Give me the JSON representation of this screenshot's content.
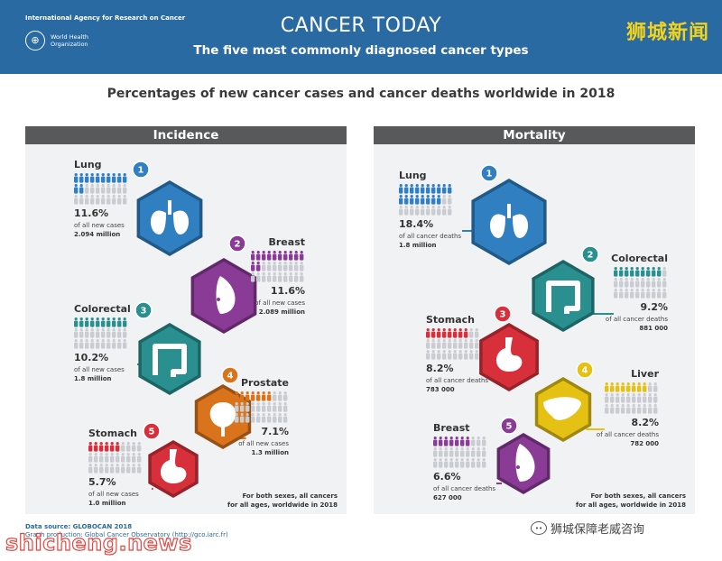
{
  "header": {
    "org_name": "International Agency for Research on Cancer",
    "who_name": "World Health\nOrganization",
    "title": "CANCER TODAY",
    "subtitle": "The five most commonly diagnosed cancer types",
    "watermark": "狮城新闻"
  },
  "main_title": "Percentages of new cancer cases and cancer deaths worldwide in 2018",
  "panels": {
    "incidence": {
      "heading": "Incidence",
      "footnote_1": "For both sexes, all cancers",
      "footnote_2": "for all ages, worldwide in 2018",
      "items": [
        {
          "rank": "1",
          "name": "Lung",
          "pct": "11.6%",
          "sub": "of all new cases",
          "count": "2.094 million",
          "color": "#2f7fc1",
          "icon": "lungs-icon",
          "highlight": 12
        },
        {
          "rank": "2",
          "name": "Breast",
          "pct": "11.6%",
          "sub": "of all new cases",
          "count": "2.089 million",
          "color": "#8a3b96",
          "icon": "breast-icon",
          "highlight": 12
        },
        {
          "rank": "3",
          "name": "Colorectal",
          "pct": "10.2%",
          "sub": "of all new cases",
          "count": "1.8 million",
          "color": "#2a8f8f",
          "icon": "colon-icon",
          "highlight": 10
        },
        {
          "rank": "4",
          "name": "Prostate",
          "pct": "7.1%",
          "sub": "of all new cases",
          "count": "1.3 million",
          "color": "#d9741c",
          "icon": "prostate-icon",
          "highlight": 7
        },
        {
          "rank": "5",
          "name": "Stomach",
          "pct": "5.7%",
          "sub": "of all new cases",
          "count": "1.0 million",
          "color": "#d7303b",
          "icon": "stomach-icon",
          "highlight": 6
        }
      ]
    },
    "mortality": {
      "heading": "Mortality",
      "footnote_1": "For both sexes, all cancers",
      "footnote_2": "for all ages, worldwide in 2018",
      "items": [
        {
          "rank": "1",
          "name": "Lung",
          "pct": "18.4%",
          "sub": "of all cancer deaths",
          "count": "1.8 million",
          "color": "#2f7fc1",
          "icon": "lungs-icon",
          "highlight": 18
        },
        {
          "rank": "2",
          "name": "Colorectal",
          "pct": "9.2%",
          "sub": "of all cancer deaths",
          "count": "881 000",
          "color": "#2a8f8f",
          "icon": "colon-icon",
          "highlight": 9
        },
        {
          "rank": "3",
          "name": "Stomach",
          "pct": "8.2%",
          "sub": "of all cancer deaths",
          "count": "783 000",
          "color": "#d7303b",
          "icon": "stomach-icon",
          "highlight": 8
        },
        {
          "rank": "4",
          "name": "Liver",
          "pct": "8.2%",
          "sub": "of all cancer deaths",
          "count": "782 000",
          "color": "#e5c114",
          "icon": "liver-icon",
          "highlight": 8
        },
        {
          "rank": "5",
          "name": "Breast",
          "pct": "6.6%",
          "sub": "of all cancer deaths",
          "count": "627 000",
          "color": "#8a3b96",
          "icon": "breast-icon",
          "highlight": 7
        }
      ]
    }
  },
  "source": {
    "label": "Data source: GLOBOCAN 2018",
    "line2": "Graph production: Global Cancer Observatory (http://gco.iarc.fr)"
  },
  "watermark_bottom_left": "shicheng.news",
  "watermark_bottom_right": "狮城保障老威咨询"
}
